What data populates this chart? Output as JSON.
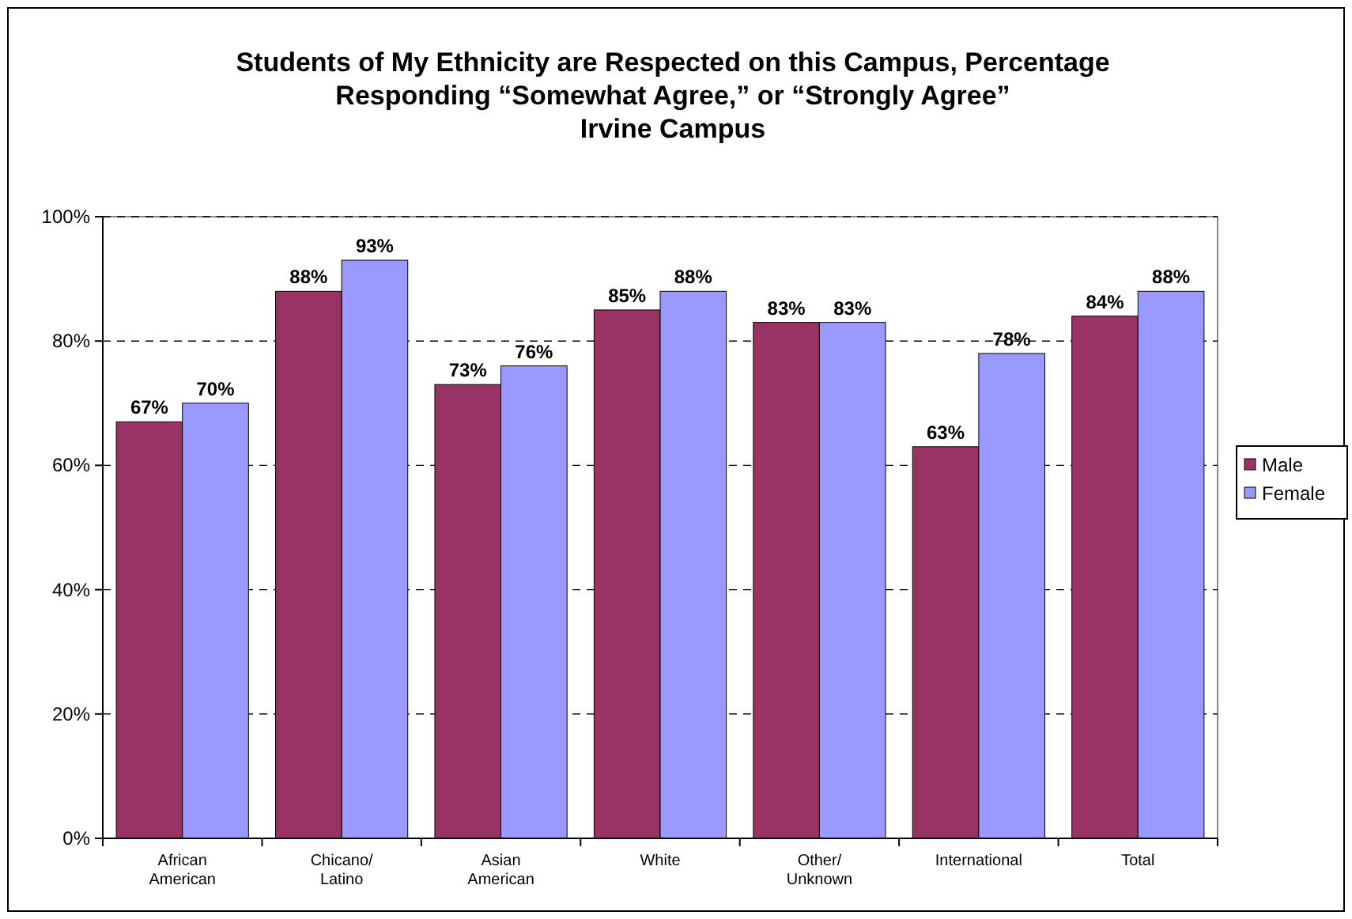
{
  "chart_data": {
    "type": "bar",
    "title": "Students of My Ethnicity are Respected on this Campus, Percentage\nResponding “Somewhat Agree,” or “Strongly Agree”",
    "subtitle": "Irvine Campus",
    "categories": [
      "African American",
      "Chicano/ Latino",
      "Asian American",
      "White",
      "Other/ Unknown",
      "International",
      "Total"
    ],
    "series": [
      {
        "name": "Male",
        "color": "#993366",
        "values": [
          67,
          88,
          73,
          85,
          83,
          63,
          84
        ],
        "value_labels": [
          "67%",
          "88%",
          "73%",
          "85%",
          "83%",
          "63%",
          "84%"
        ]
      },
      {
        "name": "Female",
        "color": "#9999ff",
        "values": [
          70,
          93,
          76,
          88,
          83,
          78,
          88
        ],
        "value_labels": [
          "70%",
          "93%",
          "76%",
          "88%",
          "83%",
          "78%",
          "88%"
        ]
      }
    ],
    "ylim": [
      0,
      100
    ],
    "yticks": [
      {
        "value": 0,
        "label": "0%"
      },
      {
        "value": 20,
        "label": "20%"
      },
      {
        "value": 40,
        "label": "40%"
      },
      {
        "value": 60,
        "label": "60%"
      },
      {
        "value": 80,
        "label": "80%"
      },
      {
        "value": 100,
        "label": "100%"
      }
    ],
    "grid": "y",
    "legend": "right"
  }
}
